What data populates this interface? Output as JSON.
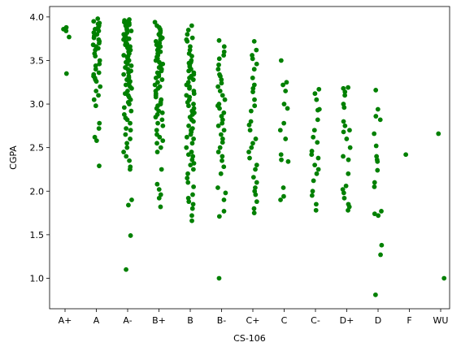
{
  "chart_data": {
    "type": "scatter",
    "title": "",
    "xlabel": "CS-106",
    "ylabel": "CGPA",
    "categories": [
      "A+",
      "A",
      "A-",
      "B+",
      "B",
      "B-",
      "C+",
      "C",
      "C-",
      "D+",
      "D",
      "F",
      "WU"
    ],
    "ylim": [
      0.65,
      4.12
    ],
    "yticks": [
      "1.0",
      "1.5",
      "2.0",
      "2.5",
      "3.0",
      "3.5",
      "4.0"
    ],
    "grid": false,
    "marker_color": "#008000",
    "series": [
      {
        "values": [
          [
            3.88,
            3.86,
            3.84,
            3.77,
            3.35
          ],
          [
            3.98,
            3.95,
            3.93,
            3.92,
            3.9,
            3.88,
            3.86,
            3.84,
            3.82,
            3.8,
            3.78,
            3.76,
            3.74,
            3.72,
            3.7,
            3.68,
            3.66,
            3.64,
            3.62,
            3.58,
            3.55,
            3.5,
            3.46,
            3.44,
            3.4,
            3.36,
            3.34,
            3.32,
            3.3,
            3.28,
            3.26,
            3.2,
            3.15,
            3.1,
            3.05,
            2.98,
            2.78,
            2.72,
            2.62,
            2.58,
            2.29
          ],
          [
            3.97,
            3.96,
            3.95,
            3.94,
            3.93,
            3.92,
            3.91,
            3.9,
            3.88,
            3.86,
            3.85,
            3.84,
            3.82,
            3.8,
            3.78,
            3.76,
            3.75,
            3.74,
            3.72,
            3.7,
            3.69,
            3.68,
            3.66,
            3.65,
            3.64,
            3.62,
            3.6,
            3.58,
            3.56,
            3.55,
            3.54,
            3.52,
            3.5,
            3.48,
            3.46,
            3.44,
            3.42,
            3.4,
            3.38,
            3.36,
            3.34,
            3.32,
            3.3,
            3.28,
            3.26,
            3.24,
            3.22,
            3.2,
            3.18,
            3.15,
            3.12,
            3.1,
            3.08,
            3.05,
            3.02,
            3.0,
            2.96,
            2.92,
            2.88,
            2.84,
            2.82,
            2.78,
            2.72,
            2.7,
            2.65,
            2.6,
            2.55,
            2.5,
            2.45,
            2.4,
            2.35,
            2.28,
            2.25,
            1.9,
            1.84,
            1.49,
            1.1
          ],
          [
            3.94,
            3.9,
            3.88,
            3.86,
            3.84,
            3.82,
            3.8,
            3.78,
            3.76,
            3.74,
            3.72,
            3.7,
            3.68,
            3.66,
            3.64,
            3.62,
            3.6,
            3.58,
            3.56,
            3.54,
            3.52,
            3.5,
            3.48,
            3.46,
            3.44,
            3.42,
            3.4,
            3.38,
            3.36,
            3.34,
            3.32,
            3.3,
            3.28,
            3.25,
            3.22,
            3.2,
            3.18,
            3.15,
            3.12,
            3.1,
            3.08,
            3.05,
            3.02,
            3.0,
            2.98,
            2.95,
            2.92,
            2.9,
            2.88,
            2.85,
            2.82,
            2.78,
            2.75,
            2.7,
            2.65,
            2.62,
            2.58,
            2.55,
            2.5,
            2.45,
            2.25,
            2.08,
            2.02,
            1.96,
            1.92,
            1.82
          ],
          [
            3.9,
            3.85,
            3.8,
            3.76,
            3.74,
            3.72,
            3.66,
            3.62,
            3.58,
            3.55,
            3.5,
            3.48,
            3.47,
            3.45,
            3.43,
            3.4,
            3.38,
            3.36,
            3.34,
            3.32,
            3.3,
            3.28,
            3.25,
            3.22,
            3.2,
            3.18,
            3.15,
            3.12,
            3.1,
            3.08,
            3.05,
            3.02,
            3.0,
            2.98,
            2.95,
            2.92,
            2.9,
            2.88,
            2.85,
            2.82,
            2.8,
            2.75,
            2.72,
            2.7,
            2.68,
            2.65,
            2.62,
            2.6,
            2.55,
            2.5,
            2.45,
            2.42,
            2.4,
            2.36,
            2.32,
            2.3,
            2.25,
            2.2,
            2.15,
            2.1,
            2.05,
            1.96,
            1.92,
            1.88,
            1.85,
            1.8,
            1.72,
            1.66
          ],
          [
            3.73,
            3.66,
            3.6,
            3.56,
            3.52,
            3.45,
            3.4,
            3.34,
            3.32,
            3.28,
            3.24,
            3.2,
            3.15,
            3.1,
            3.05,
            3.0,
            2.98,
            2.95,
            2.9,
            2.86,
            2.82,
            2.78,
            2.75,
            2.7,
            2.65,
            2.6,
            2.56,
            2.5,
            2.45,
            2.4,
            2.35,
            2.28,
            2.2,
            2.04,
            1.98,
            1.9,
            1.77,
            1.71,
            1.0
          ],
          [
            3.72,
            3.62,
            3.56,
            3.52,
            3.46,
            3.4,
            3.3,
            3.22,
            3.18,
            3.14,
            3.05,
            2.98,
            2.92,
            2.8,
            2.76,
            2.7,
            2.6,
            2.55,
            2.5,
            2.45,
            2.38,
            2.3,
            2.25,
            2.16,
            2.1,
            2.04,
            2.0,
            1.96,
            1.88,
            1.8,
            1.75
          ],
          [
            3.5,
            3.25,
            3.22,
            3.15,
            3.0,
            2.95,
            2.78,
            2.7,
            2.6,
            2.42,
            2.36,
            2.34,
            2.04,
            1.94,
            1.9
          ],
          [
            3.17,
            3.12,
            3.05,
            2.94,
            2.93,
            2.82,
            2.7,
            2.62,
            2.56,
            2.46,
            2.42,
            2.38,
            2.3,
            2.25,
            2.2,
            2.12,
            2.0,
            1.95,
            1.85,
            1.78
          ],
          [
            3.19,
            3.18,
            3.14,
            3.1,
            3.0,
            2.96,
            2.8,
            2.75,
            2.7,
            2.68,
            2.6,
            2.5,
            2.4,
            2.36,
            2.2,
            2.06,
            2.02,
            1.98,
            1.92,
            1.85,
            1.82,
            1.78
          ],
          [
            3.16,
            2.94,
            2.86,
            2.82,
            2.66,
            2.52,
            2.4,
            2.36,
            2.34,
            2.24,
            2.1,
            2.05,
            1.77,
            1.74,
            1.72,
            1.38,
            1.27,
            0.81
          ],
          [
            2.42
          ],
          [
            2.66,
            1.0
          ]
        ]
      }
    ]
  }
}
